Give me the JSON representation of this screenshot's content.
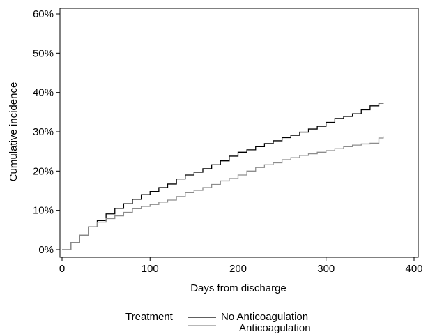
{
  "chart_data": {
    "type": "line",
    "title": "",
    "xlabel": "Days from discharge",
    "ylabel": "Cumulative incidence",
    "xlim": [
      0,
      400
    ],
    "ylim": [
      0,
      0.6
    ],
    "x_ticks": [
      0,
      100,
      200,
      300,
      400
    ],
    "x_tick_labels": [
      "0",
      "100",
      "200",
      "300",
      "400"
    ],
    "y_ticks": [
      0,
      0.1,
      0.2,
      0.3,
      0.4,
      0.5,
      0.6
    ],
    "y_tick_labels": [
      "0%",
      "10%",
      "20%",
      "30%",
      "40%",
      "50%",
      "60%"
    ],
    "grid": false,
    "legend": {
      "title": "Treatment",
      "position": "bottom"
    },
    "series": [
      {
        "name": "No Anticoagulation",
        "color": "#000000",
        "step": true,
        "x": [
          0,
          10,
          20,
          30,
          40,
          50,
          60,
          70,
          80,
          90,
          100,
          110,
          120,
          130,
          140,
          150,
          160,
          170,
          180,
          190,
          200,
          210,
          220,
          230,
          240,
          250,
          260,
          270,
          280,
          290,
          300,
          310,
          320,
          330,
          340,
          350,
          360,
          365
        ],
        "y": [
          0.0,
          0.018,
          0.037,
          0.058,
          0.074,
          0.091,
          0.105,
          0.117,
          0.128,
          0.14,
          0.148,
          0.158,
          0.167,
          0.18,
          0.19,
          0.197,
          0.206,
          0.216,
          0.226,
          0.238,
          0.248,
          0.254,
          0.262,
          0.27,
          0.277,
          0.285,
          0.291,
          0.299,
          0.307,
          0.314,
          0.324,
          0.334,
          0.339,
          0.346,
          0.356,
          0.366,
          0.373,
          0.374
        ]
      },
      {
        "name": "Anticoagulation",
        "color": "#8c8c8c",
        "step": true,
        "x": [
          0,
          10,
          20,
          30,
          40,
          50,
          60,
          70,
          80,
          90,
          100,
          110,
          120,
          130,
          140,
          150,
          160,
          170,
          180,
          190,
          200,
          210,
          220,
          230,
          240,
          250,
          260,
          270,
          280,
          290,
          300,
          310,
          320,
          330,
          340,
          350,
          360,
          365
        ],
        "y": [
          0.0,
          0.018,
          0.037,
          0.058,
          0.07,
          0.079,
          0.086,
          0.095,
          0.104,
          0.11,
          0.115,
          0.121,
          0.126,
          0.135,
          0.145,
          0.151,
          0.158,
          0.166,
          0.175,
          0.181,
          0.19,
          0.2,
          0.209,
          0.216,
          0.221,
          0.229,
          0.234,
          0.24,
          0.244,
          0.248,
          0.252,
          0.257,
          0.262,
          0.266,
          0.269,
          0.271,
          0.284,
          0.288
        ]
      }
    ]
  }
}
